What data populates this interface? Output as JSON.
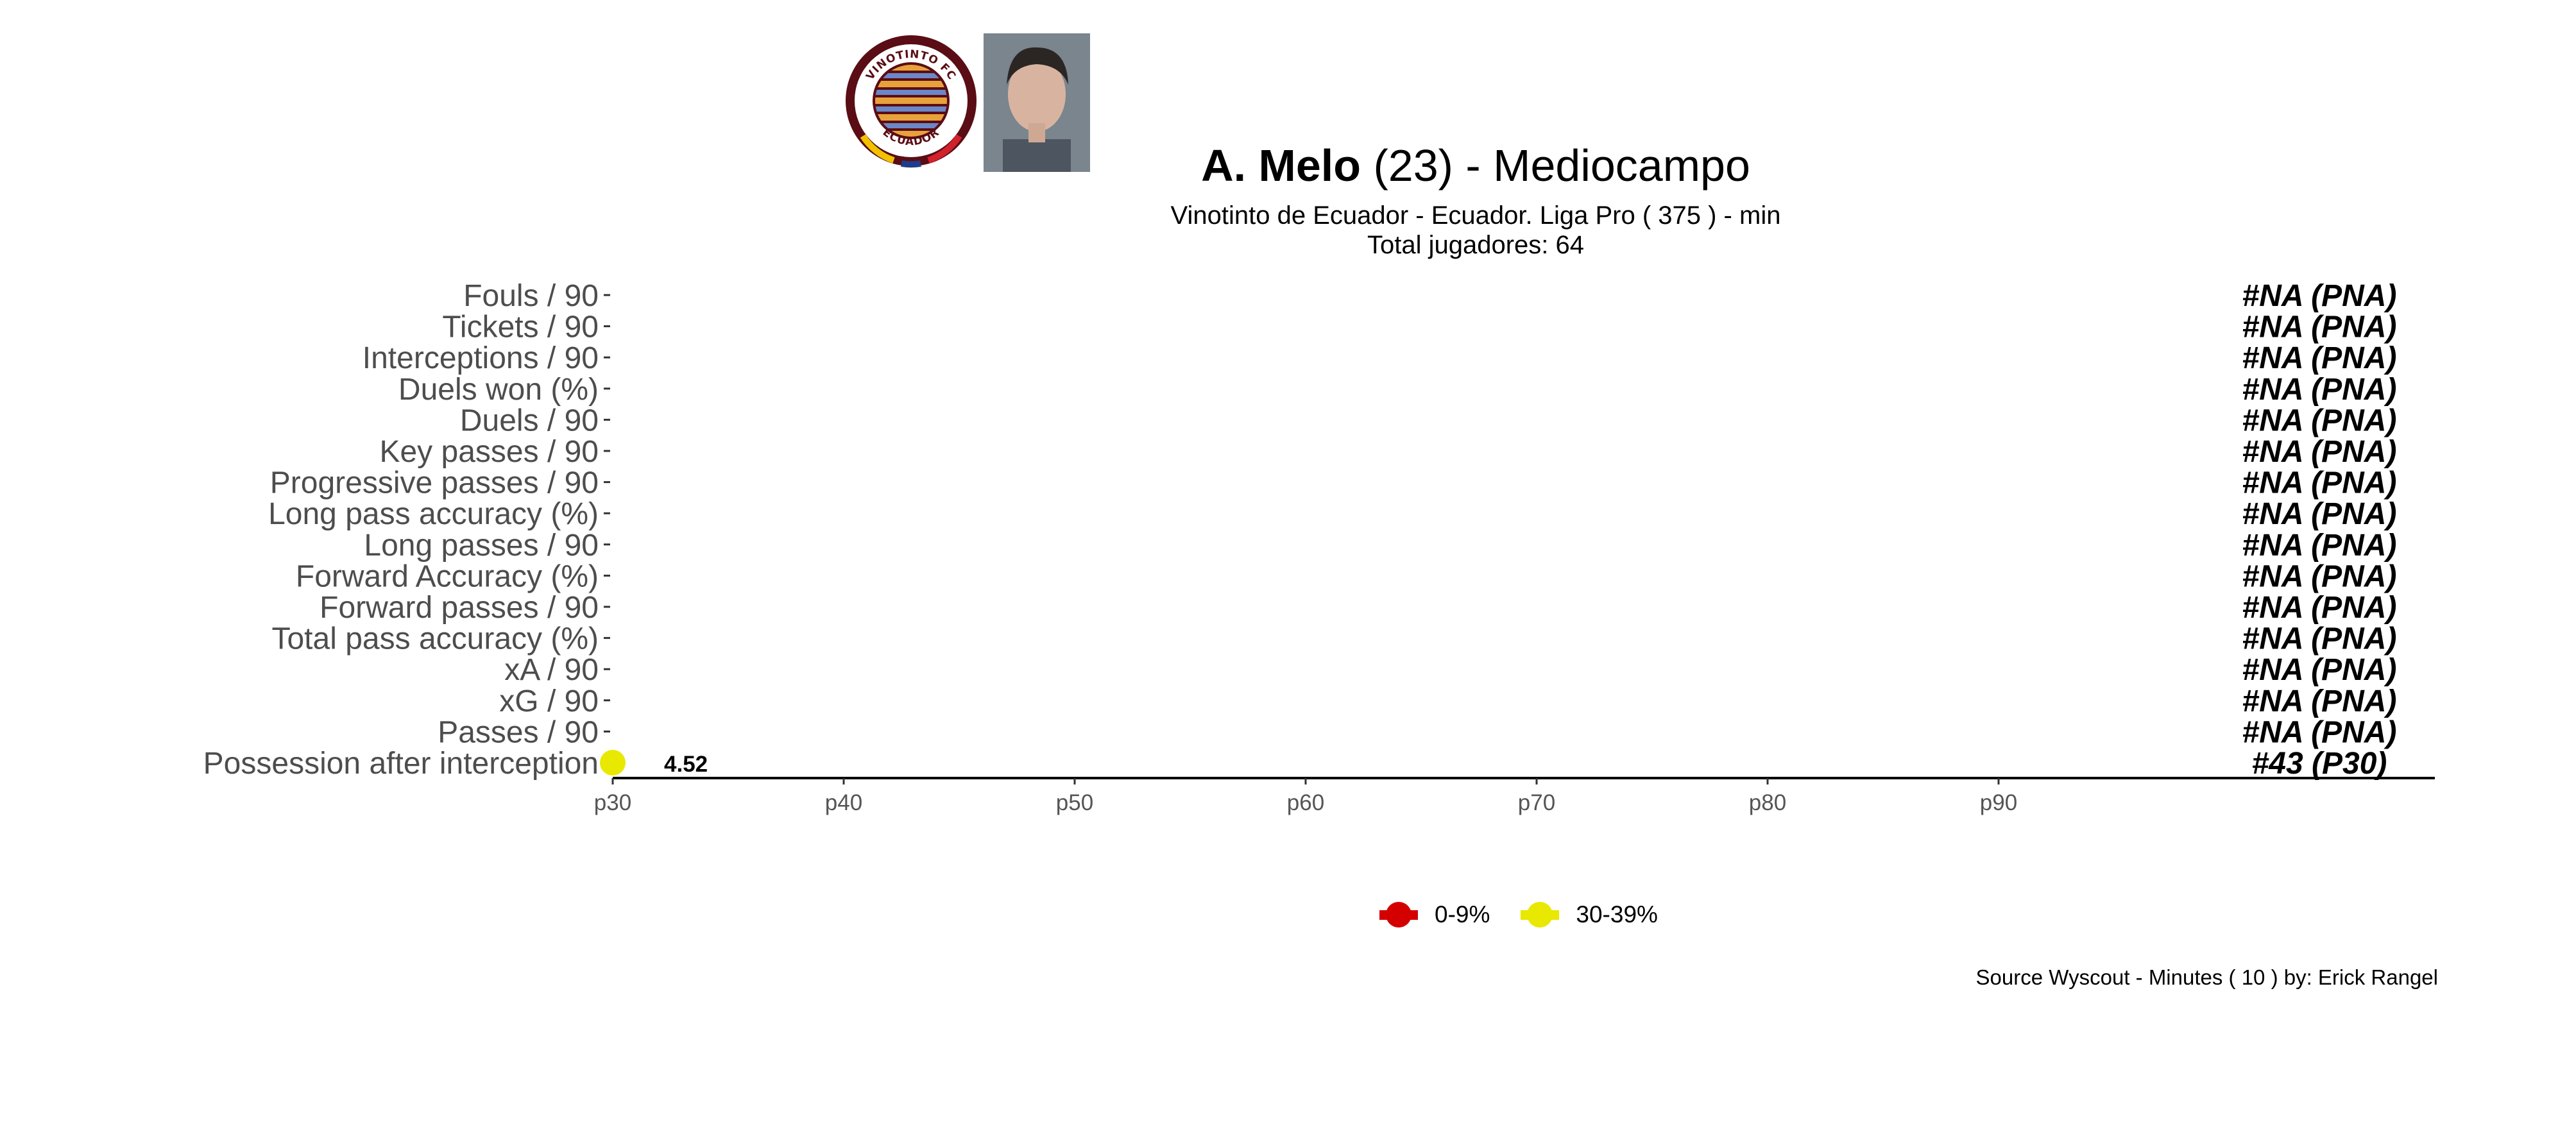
{
  "header": {
    "player_name": "A. Melo",
    "age_text": "(23)",
    "position_text": " -  Mediocampo",
    "subtitle": "Vinotinto de Ecuador  -  Ecuador. Liga Pro  ( 375 ) - min",
    "total_players": "Total jugadores:  64"
  },
  "logo": {
    "top_text": "VINOTINTO FC",
    "bottom_text": "ECUADOR",
    "ring_color": "#5a0d14",
    "stripe_colors": [
      "#f2c200",
      "#1f3c8a",
      "#d3212c"
    ]
  },
  "icons": {
    "club_logo": "club-crest-icon",
    "player_photo": "player-portrait-icon"
  },
  "chart_data": {
    "type": "bar",
    "orientation": "horizontal",
    "x_axis": {
      "ticks": [
        "p30",
        "p40",
        "p50",
        "p60",
        "p70",
        "p80",
        "p90"
      ],
      "tick_values": [
        30,
        40,
        50,
        60,
        70,
        80,
        90
      ],
      "range": [
        30,
        109
      ]
    },
    "metrics": [
      {
        "label": "Fouls / 90",
        "rank_text": "#NA (PNA)",
        "percentile": null,
        "value_text": ""
      },
      {
        "label": "Tickets / 90",
        "rank_text": "#NA (PNA)",
        "percentile": null,
        "value_text": ""
      },
      {
        "label": "Interceptions / 90",
        "rank_text": "#NA (PNA)",
        "percentile": null,
        "value_text": ""
      },
      {
        "label": "Duels won (%)",
        "rank_text": "#NA (PNA)",
        "percentile": null,
        "value_text": ""
      },
      {
        "label": "Duels / 90",
        "rank_text": "#NA (PNA)",
        "percentile": null,
        "value_text": ""
      },
      {
        "label": "Key passes / 90",
        "rank_text": "#NA (PNA)",
        "percentile": null,
        "value_text": ""
      },
      {
        "label": "Progressive passes / 90",
        "rank_text": "#NA (PNA)",
        "percentile": null,
        "value_text": ""
      },
      {
        "label": "Long pass accuracy (%)",
        "rank_text": "#NA (PNA)",
        "percentile": null,
        "value_text": ""
      },
      {
        "label": "Long passes / 90",
        "rank_text": "#NA (PNA)",
        "percentile": null,
        "value_text": ""
      },
      {
        "label": "Forward Accuracy (%)",
        "rank_text": "#NA (PNA)",
        "percentile": null,
        "value_text": ""
      },
      {
        "label": "Forward passes / 90",
        "rank_text": "#NA (PNA)",
        "percentile": null,
        "value_text": ""
      },
      {
        "label": "Total pass accuracy (%)",
        "rank_text": "#NA (PNA)",
        "percentile": null,
        "value_text": ""
      },
      {
        "label": "xA / 90",
        "rank_text": "#NA (PNA)",
        "percentile": null,
        "value_text": ""
      },
      {
        "label": "xG / 90",
        "rank_text": "#NA (PNA)",
        "percentile": null,
        "value_text": ""
      },
      {
        "label": "Passes / 90",
        "rank_text": "#NA (PNA)",
        "percentile": null,
        "value_text": ""
      },
      {
        "label": "Possession after interception",
        "rank_text": "#43 (P30)",
        "percentile": 30,
        "value_text": "4.52",
        "color": "#e8e800"
      }
    ],
    "legend": [
      {
        "label": "0-9%",
        "color": "#d40000"
      },
      {
        "label": "30-39%",
        "color": "#e8e800"
      }
    ],
    "legend_placement": "bottom",
    "grid": false
  },
  "footer": {
    "source": "Source Wyscout - Minutes ( 10 ) by: Erick Rangel"
  }
}
